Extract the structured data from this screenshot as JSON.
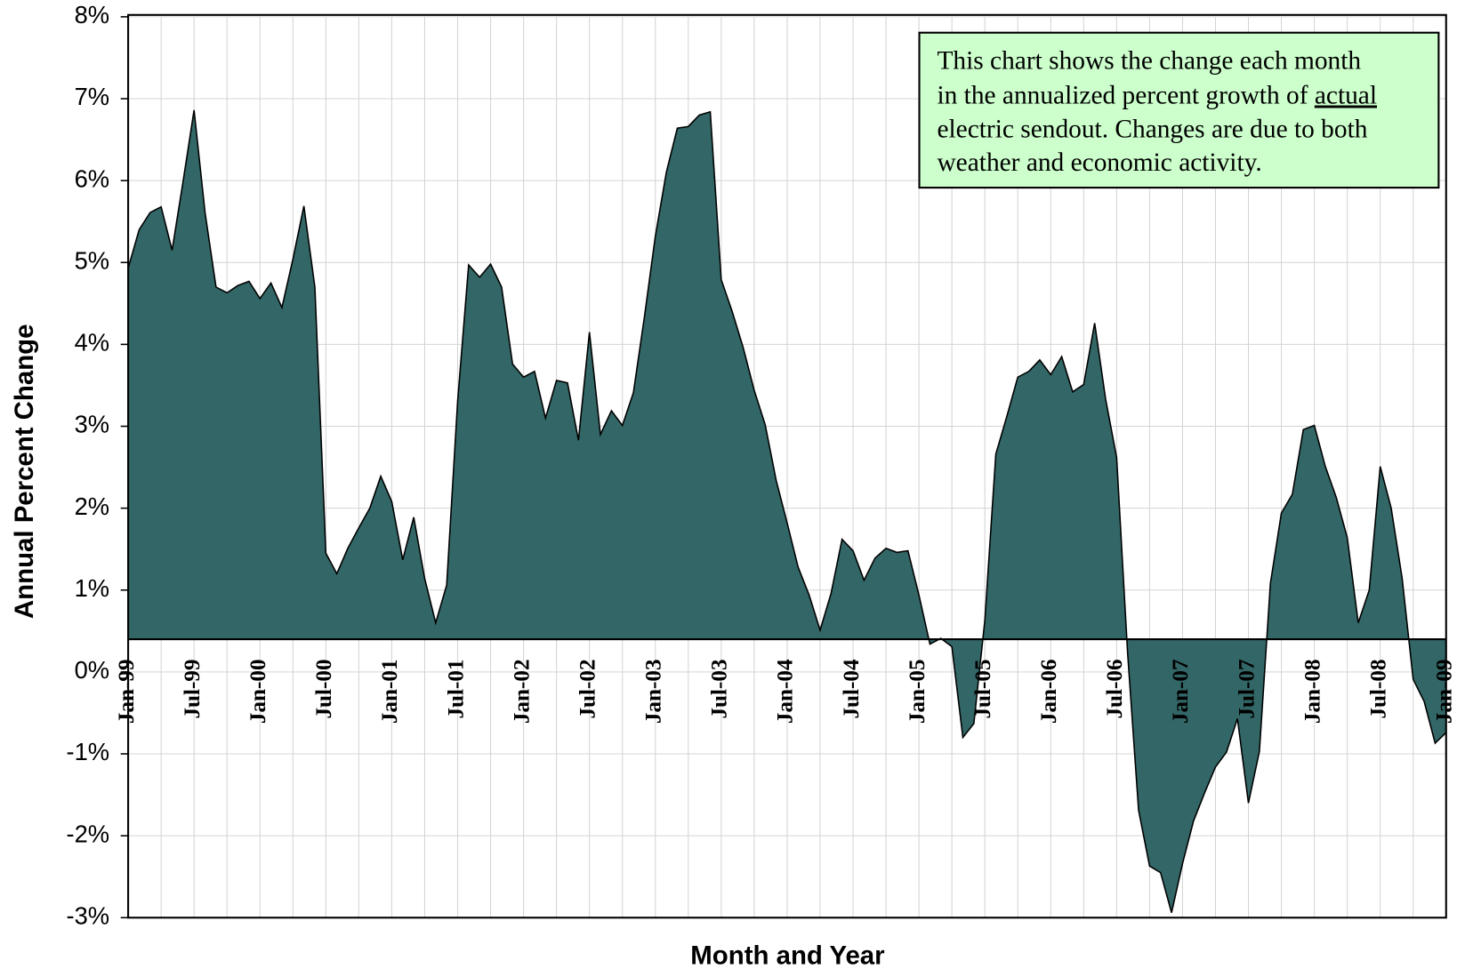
{
  "chart_data": {
    "type": "area",
    "xlabel": "Month and Year",
    "ylabel": "Annual Percent Change",
    "annotation": [
      "This chart shows the change each month",
      "in the annualized percent growth of",
      "actual",
      "electric sendout. Changes are due to both",
      "weather and economic activity."
    ],
    "categories": [
      "Jan-99",
      null,
      null,
      null,
      null,
      null,
      "Jul-99",
      null,
      null,
      null,
      null,
      null,
      "Jan-00",
      null,
      null,
      null,
      null,
      null,
      "Jul-00",
      null,
      null,
      null,
      null,
      null,
      "Jan-01",
      null,
      null,
      null,
      null,
      null,
      "Jul-01",
      null,
      null,
      null,
      null,
      null,
      "Jan-02",
      null,
      null,
      null,
      null,
      null,
      "Jul-02",
      null,
      null,
      null,
      null,
      null,
      "Jan-03",
      null,
      null,
      null,
      null,
      null,
      "Jul-03",
      null,
      null,
      null,
      null,
      null,
      "Jan-04",
      null,
      null,
      null,
      null,
      null,
      "Jul-04",
      null,
      null,
      null,
      null,
      null,
      "Jan-05",
      null,
      null,
      null,
      null,
      null,
      "Jul-05",
      null,
      null,
      null,
      null,
      null,
      "Jan-06",
      null,
      null,
      null,
      null,
      null,
      "Jul-06",
      null,
      null,
      null,
      null,
      null,
      "Jan-07",
      null,
      null,
      null,
      null,
      null,
      "Jul-07",
      null,
      null,
      null,
      null,
      null,
      "Jan-08",
      null,
      null,
      null,
      null,
      null,
      "Jul-08",
      null,
      null,
      null,
      null,
      null,
      "Jan-09"
    ],
    "values": [
      4.93,
      5.4,
      5.61,
      5.68,
      5.15,
      5.99,
      6.86,
      5.61,
      4.7,
      4.63,
      4.72,
      4.77,
      4.56,
      4.75,
      4.45,
      5.04,
      5.69,
      4.7,
      1.45,
      1.2,
      1.51,
      1.76,
      2.0,
      2.39,
      2.08,
      1.37,
      1.89,
      1.14,
      0.6,
      1.06,
      3.31,
      4.97,
      4.82,
      4.98,
      4.7,
      3.76,
      3.6,
      3.67,
      3.1,
      3.56,
      3.53,
      2.83,
      4.15,
      2.9,
      3.19,
      3.01,
      3.41,
      4.33,
      5.32,
      6.1,
      6.64,
      6.66,
      6.8,
      6.84,
      4.79,
      4.4,
      3.96,
      3.44,
      3.02,
      2.34,
      1.82,
      1.28,
      0.94,
      0.51,
      0.96,
      1.62,
      1.48,
      1.12,
      1.39,
      1.51,
      1.46,
      1.48,
      0.94,
      0.34,
      0.41,
      0.31,
      -0.8,
      -0.63,
      0.63,
      2.66,
      3.12,
      3.6,
      3.67,
      3.81,
      3.63,
      3.85,
      3.42,
      3.51,
      4.26,
      3.33,
      2.62,
      0.23,
      -1.69,
      -2.37,
      -2.45,
      -2.94,
      -2.34,
      -1.82,
      -1.48,
      -1.16,
      -0.98,
      -0.57,
      -1.6,
      -0.97,
      1.08,
      1.94,
      2.17,
      2.96,
      3.01,
      2.51,
      2.13,
      1.64,
      0.6,
      1.0,
      2.51,
      2.0,
      1.14,
      -0.09,
      -0.36,
      -0.87,
      -0.74
    ],
    "color": "#336666",
    "x_axis_crossing": 0.4,
    "ylim": [
      -3,
      8
    ],
    "yticks": [
      {
        "value": -3,
        "label": "-3%"
      },
      {
        "value": -2,
        "label": "-2%"
      },
      {
        "value": -1,
        "label": "-1%"
      },
      {
        "value": 0,
        "label": "0%"
      },
      {
        "value": 1,
        "label": "1%"
      },
      {
        "value": 2,
        "label": "2%"
      },
      {
        "value": 3,
        "label": "3%"
      },
      {
        "value": 4,
        "label": "4%"
      },
      {
        "value": 5,
        "label": "5%"
      },
      {
        "value": 6,
        "label": "6%"
      },
      {
        "value": 7,
        "label": "7%"
      },
      {
        "value": 8,
        "label": "8%"
      }
    ],
    "grid": true
  }
}
